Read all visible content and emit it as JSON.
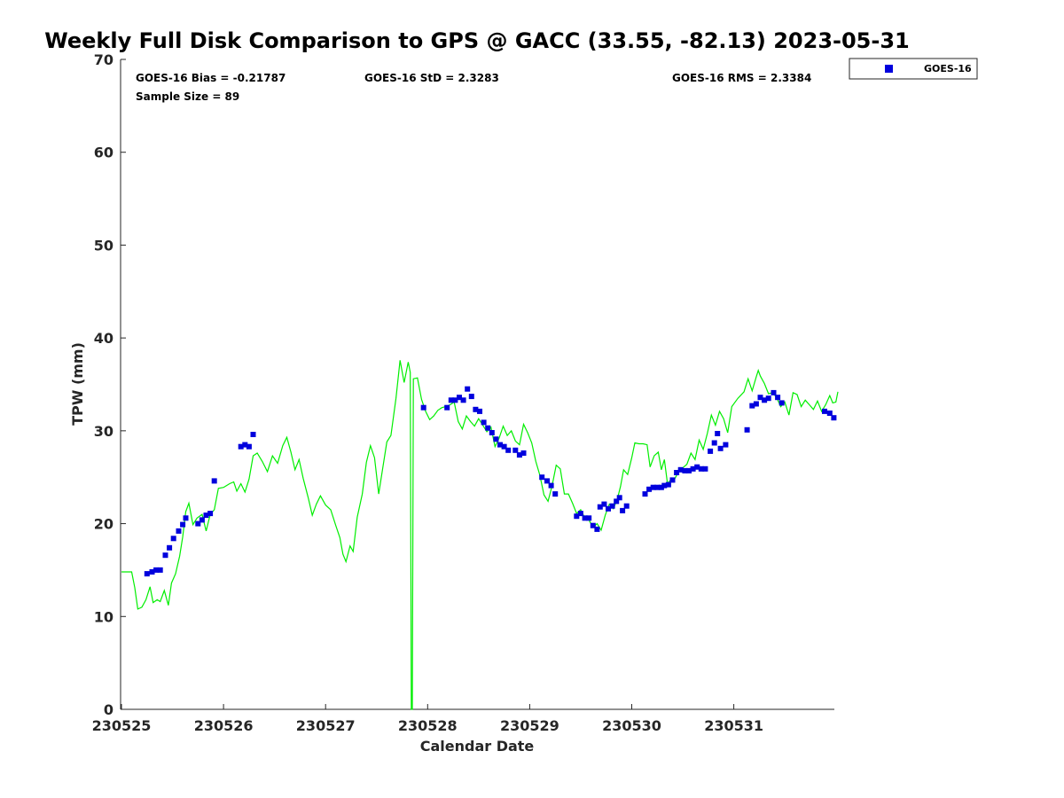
{
  "chart_data": {
    "type": "scatter",
    "title": "Weekly Full Disk Comparison to GPS @ GACC (33.55, -82.13) 2023-05-31",
    "xlabel": "Calendar Date",
    "ylabel": "TPW (mm)",
    "xlim": [
      0,
      7
    ],
    "ylim": [
      0,
      70
    ],
    "yticks": [
      0,
      10,
      20,
      30,
      40,
      50,
      60,
      70
    ],
    "xticks": [
      {
        "x": 0,
        "label": "230525"
      },
      {
        "x": 1,
        "label": "230526"
      },
      {
        "x": 2,
        "label": "230527"
      },
      {
        "x": 3,
        "label": "230528"
      },
      {
        "x": 4,
        "label": "230529"
      },
      {
        "x": 5,
        "label": "230530"
      },
      {
        "x": 6,
        "label": "230531"
      }
    ],
    "stats": {
      "bias": "GOES-16 Bias = -0.21787",
      "std": "GOES-16 StD = 2.3283",
      "rms": "GOES-16 RMS = 2.3384",
      "sample": "Sample Size = 89"
    },
    "legend": {
      "position": "top-right",
      "entries": [
        "GOES-16"
      ]
    },
    "colors": {
      "goes16": "#0000dd",
      "gps": "#00ee00"
    },
    "series": [
      {
        "name": "GOES-16",
        "marker": "square",
        "points": [
          [
            0.25,
            14.6
          ],
          [
            0.3,
            14.8
          ],
          [
            0.34,
            15.0
          ],
          [
            0.38,
            15.0
          ],
          [
            0.43,
            16.6
          ],
          [
            0.47,
            17.4
          ],
          [
            0.51,
            18.4
          ],
          [
            0.56,
            19.2
          ],
          [
            0.6,
            19.9
          ],
          [
            0.63,
            20.6
          ],
          [
            0.75,
            20.0
          ],
          [
            0.79,
            20.4
          ],
          [
            0.83,
            20.9
          ],
          [
            0.87,
            21.1
          ],
          [
            0.91,
            24.6
          ],
          [
            1.17,
            28.3
          ],
          [
            1.21,
            28.5
          ],
          [
            1.25,
            28.3
          ],
          [
            1.29,
            29.6
          ],
          [
            2.96,
            32.5
          ],
          [
            3.19,
            32.5
          ],
          [
            3.23,
            33.3
          ],
          [
            3.27,
            33.3
          ],
          [
            3.31,
            33.6
          ],
          [
            3.35,
            33.3
          ],
          [
            3.39,
            34.5
          ],
          [
            3.43,
            33.7
          ],
          [
            3.47,
            32.3
          ],
          [
            3.51,
            32.1
          ],
          [
            3.55,
            30.9
          ],
          [
            3.59,
            30.3
          ],
          [
            3.63,
            29.8
          ],
          [
            3.67,
            29.1
          ],
          [
            3.71,
            28.5
          ],
          [
            3.75,
            28.3
          ],
          [
            3.79,
            27.9
          ],
          [
            3.86,
            27.9
          ],
          [
            3.9,
            27.4
          ],
          [
            3.94,
            27.6
          ],
          [
            4.12,
            25.0
          ],
          [
            4.17,
            24.6
          ],
          [
            4.21,
            24.1
          ],
          [
            4.25,
            23.2
          ],
          [
            4.46,
            20.8
          ],
          [
            4.5,
            21.1
          ],
          [
            4.54,
            20.6
          ],
          [
            4.58,
            20.6
          ],
          [
            4.62,
            19.8
          ],
          [
            4.66,
            19.4
          ],
          [
            4.69,
            21.8
          ],
          [
            4.73,
            22.1
          ],
          [
            4.77,
            21.6
          ],
          [
            4.81,
            21.9
          ],
          [
            4.85,
            22.4
          ],
          [
            4.88,
            22.8
          ],
          [
            4.91,
            21.4
          ],
          [
            4.95,
            21.9
          ],
          [
            5.13,
            23.2
          ],
          [
            5.17,
            23.7
          ],
          [
            5.21,
            23.9
          ],
          [
            5.25,
            23.9
          ],
          [
            5.29,
            23.9
          ],
          [
            5.32,
            24.1
          ],
          [
            5.36,
            24.2
          ],
          [
            5.4,
            24.7
          ],
          [
            5.44,
            25.5
          ],
          [
            5.48,
            25.8
          ],
          [
            5.52,
            25.7
          ],
          [
            5.56,
            25.7
          ],
          [
            5.6,
            25.9
          ],
          [
            5.64,
            26.1
          ],
          [
            5.68,
            25.9
          ],
          [
            5.72,
            25.9
          ],
          [
            5.77,
            27.8
          ],
          [
            5.81,
            28.7
          ],
          [
            5.84,
            29.7
          ],
          [
            5.87,
            28.1
          ],
          [
            5.92,
            28.5
          ],
          [
            6.13,
            30.1
          ],
          [
            6.18,
            32.7
          ],
          [
            6.22,
            32.9
          ],
          [
            6.26,
            33.6
          ],
          [
            6.3,
            33.3
          ],
          [
            6.34,
            33.5
          ],
          [
            6.39,
            34.1
          ],
          [
            6.43,
            33.6
          ],
          [
            6.47,
            33.0
          ],
          [
            6.89,
            32.1
          ],
          [
            6.94,
            31.9
          ],
          [
            6.98,
            31.4
          ]
        ]
      },
      {
        "name": "GPS",
        "marker": "line",
        "points": [
          [
            0.0,
            14.8
          ],
          [
            0.1,
            14.8
          ],
          [
            0.13,
            13.1
          ],
          [
            0.16,
            10.8
          ],
          [
            0.2,
            11.0
          ],
          [
            0.24,
            11.8
          ],
          [
            0.28,
            13.2
          ],
          [
            0.31,
            11.5
          ],
          [
            0.35,
            11.8
          ],
          [
            0.38,
            11.6
          ],
          [
            0.42,
            12.8
          ],
          [
            0.46,
            11.2
          ],
          [
            0.49,
            13.6
          ],
          [
            0.53,
            14.6
          ],
          [
            0.57,
            16.5
          ],
          [
            0.6,
            18.6
          ],
          [
            0.63,
            21.3
          ],
          [
            0.66,
            22.2
          ],
          [
            0.7,
            19.9
          ],
          [
            0.74,
            20.6
          ],
          [
            0.79,
            21.0
          ],
          [
            0.83,
            19.2
          ],
          [
            0.87,
            21.0
          ],
          [
            0.91,
            21.5
          ],
          [
            0.95,
            23.8
          ],
          [
            1.0,
            23.9
          ],
          [
            1.06,
            24.3
          ],
          [
            1.1,
            24.5
          ],
          [
            1.13,
            23.5
          ],
          [
            1.17,
            24.3
          ],
          [
            1.21,
            23.4
          ],
          [
            1.25,
            24.8
          ],
          [
            1.29,
            27.3
          ],
          [
            1.33,
            27.6
          ],
          [
            1.38,
            26.7
          ],
          [
            1.43,
            25.6
          ],
          [
            1.48,
            27.3
          ],
          [
            1.53,
            26.5
          ],
          [
            1.58,
            28.4
          ],
          [
            1.62,
            29.3
          ],
          [
            1.66,
            27.7
          ],
          [
            1.7,
            25.8
          ],
          [
            1.74,
            26.9
          ],
          [
            1.78,
            24.9
          ],
          [
            1.83,
            22.8
          ],
          [
            1.87,
            20.9
          ],
          [
            1.91,
            22.1
          ],
          [
            1.95,
            23.0
          ],
          [
            2.0,
            22.0
          ],
          [
            2.05,
            21.5
          ],
          [
            2.1,
            19.8
          ],
          [
            2.14,
            18.5
          ],
          [
            2.17,
            16.7
          ],
          [
            2.2,
            15.9
          ],
          [
            2.24,
            17.6
          ],
          [
            2.27,
            17.0
          ],
          [
            2.31,
            20.7
          ],
          [
            2.36,
            23.2
          ],
          [
            2.4,
            26.6
          ],
          [
            2.44,
            28.4
          ],
          [
            2.48,
            27.1
          ],
          [
            2.52,
            23.2
          ],
          [
            2.56,
            26.0
          ],
          [
            2.6,
            28.8
          ],
          [
            2.64,
            29.5
          ],
          [
            2.69,
            33.5
          ],
          [
            2.73,
            37.6
          ],
          [
            2.77,
            35.2
          ],
          [
            2.81,
            37.4
          ],
          [
            2.83,
            36.3
          ],
          [
            2.84,
            0.0
          ],
          [
            2.85,
            0.0
          ],
          [
            2.86,
            35.6
          ],
          [
            2.9,
            35.7
          ],
          [
            2.94,
            33.4
          ],
          [
            2.98,
            32.1
          ],
          [
            3.02,
            31.2
          ],
          [
            3.06,
            31.6
          ],
          [
            3.1,
            32.2
          ],
          [
            3.14,
            32.5
          ],
          [
            3.18,
            32.6
          ],
          [
            3.22,
            32.8
          ],
          [
            3.26,
            33.1
          ],
          [
            3.3,
            31.0
          ],
          [
            3.34,
            30.2
          ],
          [
            3.38,
            31.6
          ],
          [
            3.42,
            31.0
          ],
          [
            3.46,
            30.5
          ],
          [
            3.5,
            31.3
          ],
          [
            3.54,
            30.6
          ],
          [
            3.58,
            29.9
          ],
          [
            3.62,
            30.4
          ],
          [
            3.66,
            28.3
          ],
          [
            3.7,
            29.2
          ],
          [
            3.74,
            30.5
          ],
          [
            3.78,
            29.5
          ],
          [
            3.82,
            30.0
          ],
          [
            3.86,
            28.9
          ],
          [
            3.9,
            28.5
          ],
          [
            3.94,
            30.7
          ],
          [
            3.98,
            29.8
          ],
          [
            4.02,
            28.7
          ],
          [
            4.06,
            26.7
          ],
          [
            4.1,
            25.2
          ],
          [
            4.14,
            23.1
          ],
          [
            4.18,
            22.4
          ],
          [
            4.22,
            24.1
          ],
          [
            4.26,
            26.3
          ],
          [
            4.3,
            25.9
          ],
          [
            4.34,
            23.2
          ],
          [
            4.38,
            23.2
          ],
          [
            4.42,
            22.2
          ],
          [
            4.46,
            21.1
          ],
          [
            4.5,
            21.5
          ],
          [
            4.54,
            20.6
          ],
          [
            4.58,
            20.4
          ],
          [
            4.62,
            19.6
          ],
          [
            4.66,
            20.0
          ],
          [
            4.7,
            19.3
          ],
          [
            4.74,
            20.9
          ],
          [
            4.78,
            22.1
          ],
          [
            4.82,
            21.6
          ],
          [
            4.86,
            22.7
          ],
          [
            4.89,
            24.0
          ],
          [
            4.92,
            25.8
          ],
          [
            4.96,
            25.3
          ],
          [
            5.0,
            27.1
          ],
          [
            5.03,
            28.7
          ],
          [
            5.07,
            28.6
          ],
          [
            5.11,
            28.6
          ],
          [
            5.15,
            28.5
          ],
          [
            5.18,
            26.1
          ],
          [
            5.22,
            27.3
          ],
          [
            5.26,
            27.7
          ],
          [
            5.29,
            25.8
          ],
          [
            5.32,
            26.9
          ],
          [
            5.35,
            24.3
          ],
          [
            5.38,
            24.7
          ],
          [
            5.42,
            24.8
          ],
          [
            5.46,
            25.6
          ],
          [
            5.5,
            26.0
          ],
          [
            5.54,
            26.4
          ],
          [
            5.58,
            27.6
          ],
          [
            5.62,
            26.9
          ],
          [
            5.66,
            29.0
          ],
          [
            5.7,
            28.0
          ],
          [
            5.74,
            29.7
          ],
          [
            5.78,
            31.7
          ],
          [
            5.82,
            30.6
          ],
          [
            5.86,
            32.1
          ],
          [
            5.9,
            31.3
          ],
          [
            5.94,
            29.8
          ],
          [
            5.98,
            32.6
          ],
          [
            6.04,
            33.5
          ],
          [
            6.1,
            34.2
          ],
          [
            6.14,
            35.6
          ],
          [
            6.18,
            34.3
          ],
          [
            6.22,
            35.8
          ],
          [
            6.24,
            36.5
          ],
          [
            6.26,
            35.9
          ],
          [
            6.3,
            35.1
          ],
          [
            6.34,
            34.0
          ],
          [
            6.38,
            34.1
          ],
          [
            6.42,
            33.6
          ],
          [
            6.46,
            32.6
          ],
          [
            6.5,
            33.1
          ],
          [
            6.54,
            31.7
          ],
          [
            6.58,
            34.1
          ],
          [
            6.62,
            33.9
          ],
          [
            6.66,
            32.6
          ],
          [
            6.7,
            33.3
          ],
          [
            6.74,
            32.8
          ],
          [
            6.78,
            32.3
          ],
          [
            6.82,
            33.2
          ],
          [
            6.86,
            32.1
          ],
          [
            6.9,
            32.8
          ],
          [
            6.94,
            33.8
          ],
          [
            6.97,
            33.0
          ],
          [
            7.0,
            33.1
          ],
          [
            7.02,
            34.2
          ]
        ]
      }
    ]
  }
}
